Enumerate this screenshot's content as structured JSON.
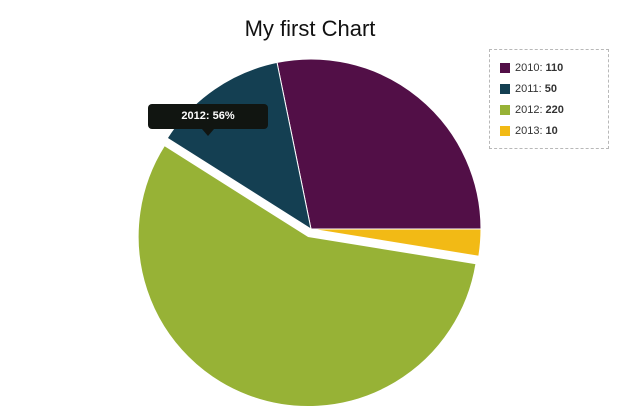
{
  "chart_data": {
    "type": "pie",
    "title": "My first Chart",
    "categories": [
      "2010",
      "2011",
      "2012",
      "2013"
    ],
    "values": [
      110,
      50,
      220,
      10
    ],
    "colors": [
      "#520f47",
      "#143f52",
      "#97b236",
      "#f2ba15"
    ],
    "legend": {
      "placement": "top-right",
      "border": "dashed",
      "entries": [
        {
          "label": "2010:",
          "value": "110"
        },
        {
          "label": "2011:",
          "value": "50"
        },
        {
          "label": "2012:",
          "value": "220"
        },
        {
          "label": "2013:",
          "value": "10"
        }
      ]
    },
    "tooltip": {
      "text": "2012: 56%",
      "category": "2012",
      "percent": 56
    }
  }
}
